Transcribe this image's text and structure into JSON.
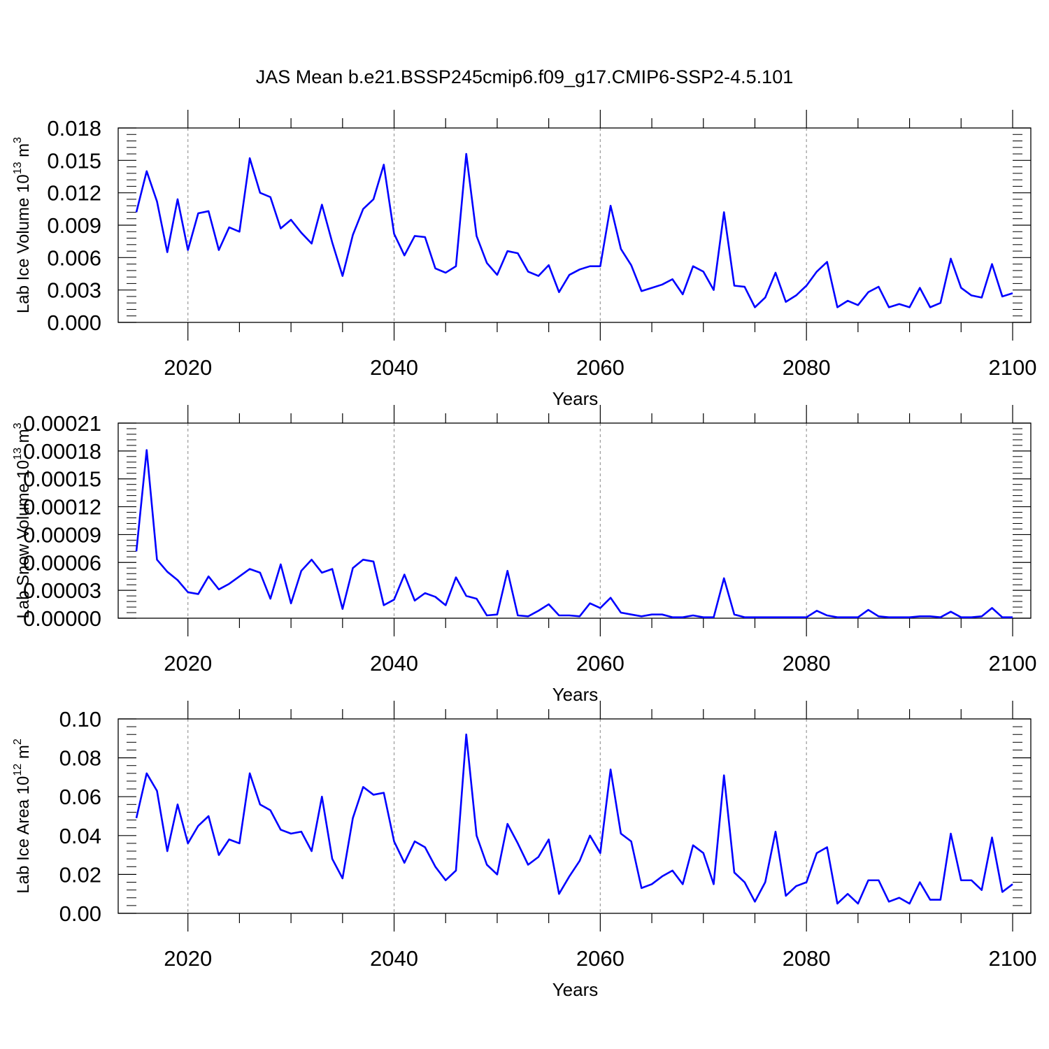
{
  "title": "JAS Mean b.e21.BSSP245cmip6.f09_g17.CMIP6-SSP2-4.5.101",
  "colors": {
    "line": "#0000ff",
    "axis": "#000000",
    "grid": "#999999"
  },
  "chart_data": [
    {
      "type": "line",
      "ylabel": "Lab Ice Volume 10",
      "ylabel_exp": "13",
      "ylabel_unit": " m",
      "ylabel_unit_exp": "3",
      "xlabel": "Years",
      "xlim": [
        2015,
        2100
      ],
      "ylim": [
        0,
        0.018
      ],
      "x_ticks": [
        "2020",
        "2040",
        "2060",
        "2080",
        "2100"
      ],
      "y_ticks": [
        "0.000",
        "0.003",
        "0.006",
        "0.009",
        "0.012",
        "0.015",
        "0.018"
      ],
      "grid": "vertical dashed at major x ticks",
      "series": [
        {
          "x_start": 2015,
          "values": [
            0.0102,
            0.014,
            0.0112,
            0.0065,
            0.0114,
            0.0067,
            0.0101,
            0.0103,
            0.0067,
            0.0088,
            0.0084,
            0.0152,
            0.012,
            0.0116,
            0.0087,
            0.0095,
            0.0083,
            0.0073,
            0.0109,
            0.0074,
            0.0043,
            0.0081,
            0.0105,
            0.0114,
            0.0146,
            0.0082,
            0.0062,
            0.008,
            0.0079,
            0.005,
            0.0046,
            0.0052,
            0.0156,
            0.008,
            0.0055,
            0.0044,
            0.0066,
            0.0064,
            0.0047,
            0.0043,
            0.0053,
            0.0028,
            0.0044,
            0.0049,
            0.0052,
            0.0052,
            0.0108,
            0.0068,
            0.0053,
            0.0029,
            0.0032,
            0.0035,
            0.004,
            0.0026,
            0.0052,
            0.0047,
            0.003,
            0.0102,
            0.0034,
            0.0033,
            0.0014,
            0.0023,
            0.0046,
            0.0019,
            0.0025,
            0.0034,
            0.0047,
            0.0056,
            0.0014,
            0.002,
            0.0016,
            0.0028,
            0.0033,
            0.0014,
            0.0017,
            0.0014,
            0.0032,
            0.0014,
            0.0018,
            0.0059,
            0.0032,
            0.0025,
            0.0023,
            0.0054,
            0.0024,
            0.0027
          ]
        }
      ]
    },
    {
      "type": "line",
      "ylabel": "Lab Snow Volume 10",
      "ylabel_exp": "13",
      "ylabel_unit": " m",
      "ylabel_unit_exp": "3",
      "xlabel": "Years",
      "xlim": [
        2015,
        2100
      ],
      "ylim": [
        0,
        0.00021
      ],
      "x_ticks": [
        "2020",
        "2040",
        "2060",
        "2080",
        "2100"
      ],
      "y_ticks": [
        "0.00000",
        "0.00003",
        "0.00006",
        "0.00009",
        "0.00012",
        "0.00015",
        "0.00018",
        "0.00021"
      ],
      "grid": "vertical dashed at major x ticks",
      "series": [
        {
          "x_start": 2015,
          "values": [
            7.2e-05,
            0.000181,
            6.3e-05,
            5e-05,
            4.1e-05,
            2.8e-05,
            2.6e-05,
            4.5e-05,
            3.1e-05,
            3.7e-05,
            4.5e-05,
            5.3e-05,
            4.9e-05,
            2.1e-05,
            5.8e-05,
            1.6e-05,
            5.1e-05,
            6.3e-05,
            4.9e-05,
            5.3e-05,
            1e-05,
            5.4e-05,
            6.3e-05,
            6.1e-05,
            1.4e-05,
            2e-05,
            4.7e-05,
            1.9e-05,
            2.7e-05,
            2.3e-05,
            1.4e-05,
            4.4e-05,
            2.4e-05,
            2.1e-05,
            3e-06,
            4e-06,
            5.1e-05,
            3e-06,
            2e-06,
            8e-06,
            1.5e-05,
            3e-06,
            3e-06,
            2e-06,
            1.6e-05,
            1.1e-05,
            2.2e-05,
            6e-06,
            4e-06,
            2e-06,
            4e-06,
            4e-06,
            1e-06,
            1e-06,
            3e-06,
            1e-06,
            1e-06,
            4.3e-05,
            4e-06,
            1e-06,
            1e-06,
            1e-06,
            1e-06,
            1e-06,
            1e-06,
            1e-06,
            8e-06,
            3e-06,
            1e-06,
            1e-06,
            1e-06,
            9e-06,
            2e-06,
            1e-06,
            1e-06,
            1e-06,
            2e-06,
            2e-06,
            1e-06,
            7e-06,
            1e-06,
            1e-06,
            2e-06,
            1.1e-05,
            1e-06,
            1e-06
          ]
        }
      ]
    },
    {
      "type": "line",
      "ylabel": "Lab Ice Area 10",
      "ylabel_exp": "12",
      "ylabel_unit": " m",
      "ylabel_unit_exp": "2",
      "xlabel": "Years",
      "xlim": [
        2015,
        2100
      ],
      "ylim": [
        0,
        0.1
      ],
      "x_ticks": [
        "2020",
        "2040",
        "2060",
        "2080",
        "2100"
      ],
      "y_ticks": [
        "0.00",
        "0.02",
        "0.04",
        "0.06",
        "0.08",
        "0.10"
      ],
      "grid": "vertical dashed at major x ticks",
      "series": [
        {
          "x_start": 2015,
          "values": [
            0.049,
            0.072,
            0.063,
            0.032,
            0.056,
            0.036,
            0.045,
            0.05,
            0.03,
            0.038,
            0.036,
            0.072,
            0.056,
            0.053,
            0.043,
            0.041,
            0.042,
            0.032,
            0.06,
            0.028,
            0.018,
            0.049,
            0.065,
            0.061,
            0.062,
            0.037,
            0.026,
            0.037,
            0.034,
            0.024,
            0.017,
            0.022,
            0.092,
            0.04,
            0.025,
            0.02,
            0.046,
            0.036,
            0.025,
            0.029,
            0.038,
            0.01,
            0.019,
            0.027,
            0.04,
            0.031,
            0.074,
            0.041,
            0.037,
            0.013,
            0.015,
            0.019,
            0.022,
            0.015,
            0.035,
            0.031,
            0.015,
            0.071,
            0.021,
            0.016,
            0.006,
            0.016,
            0.042,
            0.009,
            0.014,
            0.016,
            0.031,
            0.034,
            0.005,
            0.01,
            0.005,
            0.017,
            0.017,
            0.006,
            0.008,
            0.005,
            0.016,
            0.007,
            0.007,
            0.041,
            0.017,
            0.017,
            0.012,
            0.039,
            0.011,
            0.015
          ]
        }
      ]
    }
  ]
}
